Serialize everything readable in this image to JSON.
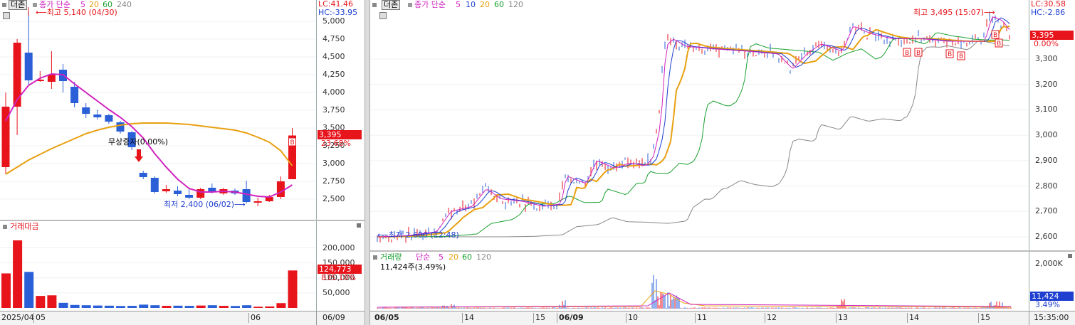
{
  "left": {
    "title_btn": "더존",
    "ma_label": "종가 단순",
    "ma_periods": [
      "5",
      "20",
      "60",
      "240"
    ],
    "lc": "LC:41.46",
    "hc": "HC:-33.95",
    "high_note": "최고 5,140 (04/30)",
    "low_note": "최저 2,400 (06/02)",
    "event_note": "무상증자(0.00%)",
    "price_badge": "3,395",
    "pct_badge": "23.68%",
    "y_ticks": [
      "5,000",
      "4,750",
      "4,500",
      "4,250",
      "4,000",
      "3,750",
      "3,500",
      "3,250",
      "3,000",
      "2,750",
      "2,500"
    ],
    "vol_title": "거래대금",
    "vol_ticks": [
      "200,000",
      "150,000",
      "100,000",
      "50,000"
    ],
    "vol_badge": "124,773",
    "vol_pct": "835.10%",
    "x_labels": [
      "2025/04",
      "05",
      "06"
    ],
    "x_corner": "06/09",
    "candles": [
      {
        "o": 2950,
        "c": 3800,
        "h": 4000,
        "l": 2850
      },
      {
        "o": 3800,
        "c": 4700,
        "h": 4750,
        "l": 3400
      },
      {
        "o": 4560,
        "c": 4170,
        "h": 5140,
        "l": 4100
      },
      {
        "o": 4170,
        "c": 4180,
        "h": 4300,
        "l": 4150
      },
      {
        "o": 4150,
        "c": 4250,
        "h": 4580,
        "l": 4050
      },
      {
        "o": 4320,
        "c": 4160,
        "h": 4400,
        "l": 4000
      },
      {
        "o": 4080,
        "c": 3850,
        "h": 4150,
        "l": 3790
      },
      {
        "o": 3790,
        "c": 3700,
        "h": 3850,
        "l": 3640
      },
      {
        "o": 3690,
        "c": 3650,
        "h": 3760,
        "l": 3620
      },
      {
        "o": 3680,
        "c": 3590,
        "h": 3700,
        "l": 3560
      },
      {
        "o": 3580,
        "c": 3450,
        "h": 3600,
        "l": 3420
      },
      {
        "o": 3440,
        "c": 3230,
        "h": 3460,
        "l": 3190
      },
      {
        "o": 2870,
        "c": 2810,
        "h": 2900,
        "l": 2780
      },
      {
        "o": 2800,
        "c": 2600,
        "h": 2820,
        "l": 2580
      },
      {
        "o": 2610,
        "c": 2640,
        "h": 2700,
        "l": 2590
      },
      {
        "o": 2620,
        "c": 2570,
        "h": 2680,
        "l": 2540
      },
      {
        "o": 2560,
        "c": 2520,
        "h": 2640,
        "l": 2500
      },
      {
        "o": 2520,
        "c": 2640,
        "h": 2660,
        "l": 2500
      },
      {
        "o": 2660,
        "c": 2600,
        "h": 2720,
        "l": 2580
      },
      {
        "o": 2580,
        "c": 2640,
        "h": 2660,
        "l": 2560
      },
      {
        "o": 2620,
        "c": 2580,
        "h": 2650,
        "l": 2560
      },
      {
        "o": 2640,
        "c": 2460,
        "h": 2760,
        "l": 2440
      },
      {
        "o": 2460,
        "c": 2470,
        "h": 2520,
        "l": 2400
      },
      {
        "o": 2470,
        "c": 2530,
        "h": 2560,
        "l": 2460
      },
      {
        "o": 2530,
        "c": 2750,
        "h": 2820,
        "l": 2500
      },
      {
        "o": 2780,
        "c": 3395,
        "h": 3500,
        "l": 2780
      }
    ],
    "ma5": [
      3600,
      3900,
      4100,
      4200,
      4260,
      4250,
      4120,
      4000,
      3880,
      3760,
      3650,
      3520,
      3360,
      3140,
      2950,
      2780,
      2650,
      2600,
      2600,
      2610,
      2600,
      2570,
      2540,
      2530,
      2600,
      2700
    ],
    "ma20": [
      2850,
      2950,
      3050,
      3130,
      3210,
      3280,
      3350,
      3420,
      3470,
      3510,
      3540,
      3560,
      3570,
      3570,
      3570,
      3560,
      3550,
      3530,
      3510,
      3490,
      3470,
      3430,
      3370,
      3300,
      3180,
      2970
    ],
    "volumes": [
      115000,
      225000,
      120000,
      40000,
      42000,
      17000,
      10000,
      9000,
      8000,
      7500,
      6500,
      7000,
      11000,
      9000,
      7000,
      7500,
      7000,
      8000,
      9000,
      7000,
      6500,
      9000,
      4000,
      5000,
      16000,
      124773
    ]
  },
  "right": {
    "title_btn": "더존",
    "ma_label": "종가 단순",
    "ma_periods": [
      "5",
      "10",
      "20",
      "60",
      "120"
    ],
    "lc": "LC:30.58",
    "hc": "HC:-2.86",
    "high_note": "최고 3,495 (15:07)",
    "low_note": "최저 2,600 (12:48)",
    "price_badge": "3,395",
    "pct_badge": "0.00%",
    "y_ticks": [
      "3,300",
      "3,200",
      "3,100",
      "3,000",
      "2,900",
      "2,800",
      "2,700",
      "2,600"
    ],
    "vol_title": "거래량",
    "vol_ma_label": "단순",
    "vol_periods": [
      "5",
      "20",
      "60",
      "120"
    ],
    "vol_value": "11,424주(3.49%)",
    "vol_tick": "2,000K",
    "vol_badge": "11,424",
    "vol_pct": "3.49%",
    "x_labels": [
      "06/05",
      "14",
      "15",
      "06/09",
      "10",
      "11",
      "12",
      "13",
      "14",
      "15"
    ],
    "x_corner": "15:35:00",
    "buy_mark": "B"
  },
  "colors": {
    "up": "#e8141b",
    "down": "#2a5fd8",
    "ma5": "#d023c0",
    "ma10": "#1e3fd0",
    "ma20": "#e8a010",
    "ma60": "#1aa030",
    "ma120": "#888888"
  }
}
